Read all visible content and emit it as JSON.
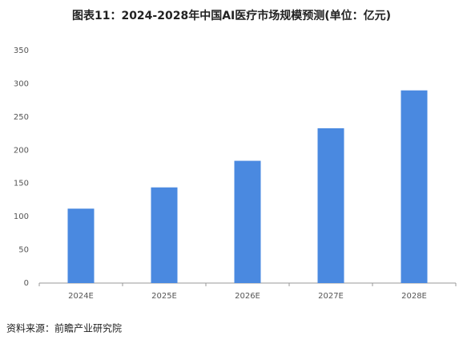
{
  "chart_data": {
    "type": "bar",
    "title": "图表11：2024-2028年中国AI医疗市场规模预测(单位：亿元)",
    "categories": [
      "2024E",
      "2025E",
      "2026E",
      "2027E",
      "2028E"
    ],
    "values": [
      112,
      144,
      184,
      233,
      290
    ],
    "color": "#4a89e0",
    "ylim": [
      0,
      350
    ],
    "yticks": [
      0,
      50,
      100,
      150,
      200,
      250,
      300,
      350
    ],
    "grid": false,
    "source": "资料来源：前瞻产业研究院"
  }
}
